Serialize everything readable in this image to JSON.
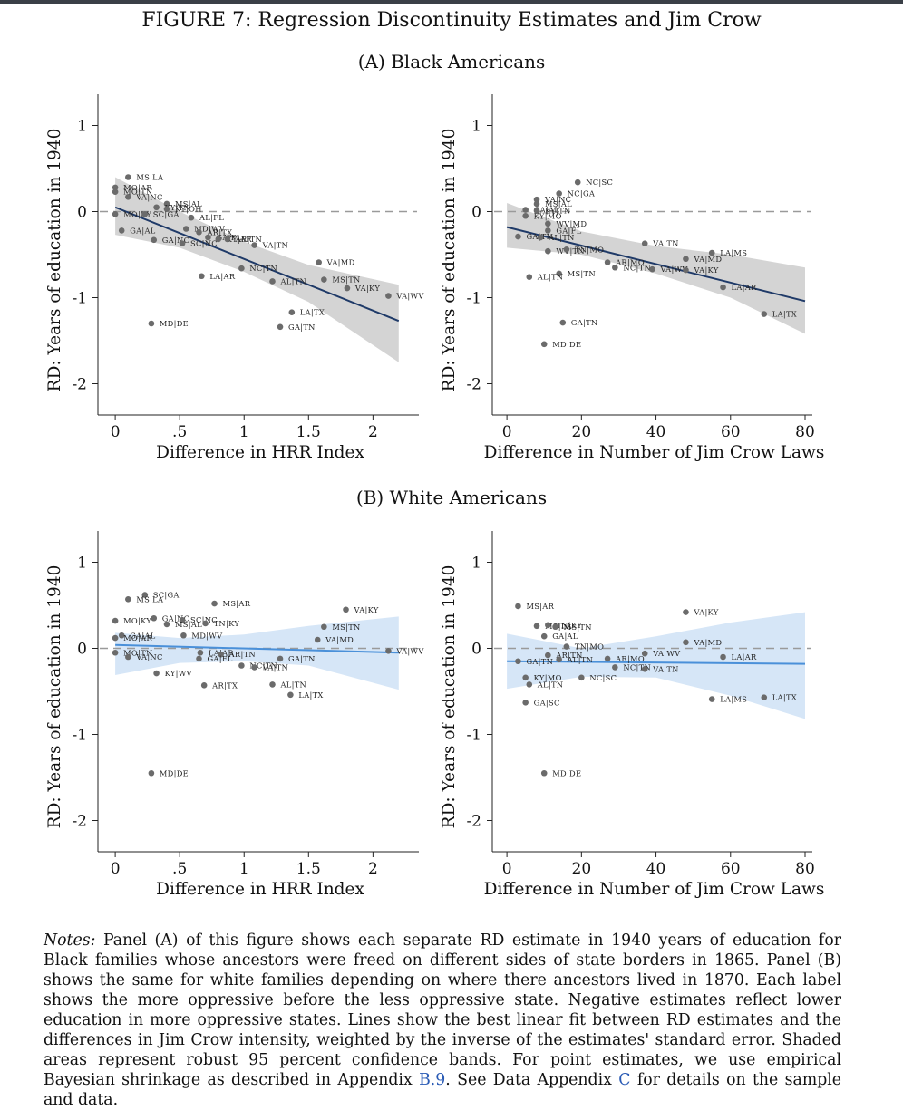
{
  "header": {
    "figure_title": "FIGURE 7: Regression Discontinuity Estimates and Jim Crow",
    "panel_a_title": "(A) Black Americans",
    "panel_b_title": "(B) White Americans"
  },
  "notes": {
    "label": "Notes:",
    "body": "Panel (A) of this figure shows each separate RD estimate in 1940 years of education for Black families whose ancestors were freed on different sides of state borders in 1865. Panel (B) shows the same for white families depending on where there ancestors lived in 1870. Each label shows the more oppressive before the less oppressive state. Negative estimates reflect lower education in more oppressive states. Lines show the best linear fit between RD estimates and the differences in Jim Crow intensity, weighted by the inverse of the estimates' standard error. Shaded areas represent robust 95 percent confidence bands. For point estimates, we use empirical Bayesian shrinkage as described in Appendix",
    "ref1": "B.9",
    "mid": ". See Data Appendix",
    "ref2": "C",
    "tail": "for details on the sample and data."
  },
  "colors": {
    "black_fit": "#1f3a68",
    "black_band": "#d4d4d4",
    "white_fit": "#4a90d9",
    "white_band": "#d6e6f7",
    "points": "#6b6b6b"
  },
  "chart_data": [
    {
      "id": "a_hrr",
      "type": "scatter",
      "ylabel": "RD: Years of education in 1940",
      "xlabel": "Difference in HRR Index",
      "xticks": [
        0,
        0.5,
        1,
        1.5,
        2
      ],
      "xticklabels": [
        "0",
        ".5",
        "1",
        "1.5",
        "2"
      ],
      "yticks": [
        -2,
        -1,
        0,
        1
      ],
      "yticklabels": [
        "-2",
        "-1",
        "0",
        "1"
      ],
      "xlim": [
        -0.05,
        2.3
      ],
      "ylim": [
        -2.3,
        1.3
      ],
      "fit": {
        "x": [
          0,
          2.2
        ],
        "y": [
          0.05,
          -1.27
        ]
      },
      "band": {
        "x": [
          0,
          0.5,
          1,
          1.5,
          2.2
        ],
        "upper": [
          0.4,
          0.0,
          -0.35,
          -0.62,
          -0.85
        ],
        "lower": [
          -0.27,
          -0.42,
          -0.7,
          -1.05,
          -1.75
        ]
      },
      "points": [
        {
          "x": 0.1,
          "y": 0.4,
          "label": "MS|LA"
        },
        {
          "x": 0.0,
          "y": 0.28,
          "label": "MO|AR"
        },
        {
          "x": 0.0,
          "y": 0.23,
          "label": "MO|TN"
        },
        {
          "x": 0.1,
          "y": 0.17,
          "label": "VA|NC"
        },
        {
          "x": 0.4,
          "y": 0.09,
          "label": "MS|AL"
        },
        {
          "x": 0.32,
          "y": 0.05,
          "label": "KY|TN"
        },
        {
          "x": 0.4,
          "y": 0.03,
          "label": "KY|OH"
        },
        {
          "x": 0.0,
          "y": -0.03,
          "label": "MO|KY"
        },
        {
          "x": 0.23,
          "y": -0.03,
          "label": "SC|GA"
        },
        {
          "x": 0.59,
          "y": -0.07,
          "label": "AL|FL"
        },
        {
          "x": 0.05,
          "y": -0.22,
          "label": "GA|AL"
        },
        {
          "x": 0.55,
          "y": -0.2,
          "label": "MD|WV"
        },
        {
          "x": 0.65,
          "y": -0.24,
          "label": "AR|TX"
        },
        {
          "x": 0.3,
          "y": -0.33,
          "label": "GA|NC"
        },
        {
          "x": 0.52,
          "y": -0.37,
          "label": "SC|NC"
        },
        {
          "x": 0.72,
          "y": -0.3,
          "label": "GA|FL"
        },
        {
          "x": 0.8,
          "y": -0.32,
          "label": "KY|AR"
        },
        {
          "x": 0.87,
          "y": -0.32,
          "label": "AR|TN"
        },
        {
          "x": 1.08,
          "y": -0.39,
          "label": "VA|TN"
        },
        {
          "x": 1.58,
          "y": -0.59,
          "label": "VA|MD"
        },
        {
          "x": 0.67,
          "y": -0.75,
          "label": "LA|AR"
        },
        {
          "x": 0.98,
          "y": -0.66,
          "label": "NC|TN"
        },
        {
          "x": 1.22,
          "y": -0.81,
          "label": "AL|TN"
        },
        {
          "x": 1.62,
          "y": -0.79,
          "label": "MS|TN"
        },
        {
          "x": 1.8,
          "y": -0.89,
          "label": "VA|KY"
        },
        {
          "x": 2.12,
          "y": -0.98,
          "label": "VA|WV"
        },
        {
          "x": 1.37,
          "y": -1.17,
          "label": "LA|TX"
        },
        {
          "x": 0.28,
          "y": -1.3,
          "label": "MD|DE"
        },
        {
          "x": 1.28,
          "y": -1.34,
          "label": "GA|TN"
        }
      ]
    },
    {
      "id": "a_laws",
      "type": "scatter",
      "ylabel": "RD: Years of education in 1940",
      "xlabel": "Difference in Number of Jim Crow Laws",
      "xticks": [
        0,
        20,
        40,
        60,
        80
      ],
      "xticklabels": [
        "0",
        "20",
        "40",
        "60",
        "80"
      ],
      "yticks": [
        -2,
        -1,
        0,
        1
      ],
      "yticklabels": [
        "-2",
        "-1",
        "0",
        "1"
      ],
      "xlim": [
        -1,
        80
      ],
      "ylim": [
        -2.3,
        1.3
      ],
      "fit": {
        "x": [
          0,
          80
        ],
        "y": [
          -0.18,
          -1.04
        ]
      },
      "band": {
        "x": [
          0,
          20,
          40,
          60,
          80
        ],
        "upper": [
          0.1,
          -0.23,
          -0.4,
          -0.5,
          -0.65
        ],
        "lower": [
          -0.42,
          -0.5,
          -0.72,
          -1.0,
          -1.42
        ]
      },
      "points": [
        {
          "x": 19,
          "y": 0.34,
          "label": "NC|SC"
        },
        {
          "x": 14,
          "y": 0.21,
          "label": "NC|GA"
        },
        {
          "x": 8,
          "y": 0.14,
          "label": "VA|NC"
        },
        {
          "x": 8,
          "y": 0.09,
          "label": "MS|AL"
        },
        {
          "x": 5,
          "y": 0.02,
          "label": "GA|AL"
        },
        {
          "x": 8,
          "y": 0.01,
          "label": "KY|TN"
        },
        {
          "x": 5,
          "y": -0.05,
          "label": "KY|MO"
        },
        {
          "x": 11,
          "y": -0.14,
          "label": "WV|MD"
        },
        {
          "x": 11,
          "y": -0.22,
          "label": "GA|FL"
        },
        {
          "x": 3,
          "y": -0.29,
          "label": "GA|TN"
        },
        {
          "x": 9,
          "y": -0.3,
          "label": "AL|TN"
        },
        {
          "x": 37,
          "y": -0.37,
          "label": "VA|TN"
        },
        {
          "x": 11,
          "y": -0.46,
          "label": "WV|TN"
        },
        {
          "x": 16,
          "y": -0.44,
          "label": "TN|MO"
        },
        {
          "x": 55,
          "y": -0.48,
          "label": "LA|MS"
        },
        {
          "x": 48,
          "y": -0.55,
          "label": "VA|MD"
        },
        {
          "x": 27,
          "y": -0.59,
          "label": "AR|MO"
        },
        {
          "x": 29,
          "y": -0.65,
          "label": "NC|TN"
        },
        {
          "x": 39,
          "y": -0.67,
          "label": "VA|WV"
        },
        {
          "x": 48,
          "y": -0.68,
          "label": "VA|KY"
        },
        {
          "x": 14,
          "y": -0.72,
          "label": "MS|TN"
        },
        {
          "x": 6,
          "y": -0.76,
          "label": "AL|TN"
        },
        {
          "x": 58,
          "y": -0.88,
          "label": "LA|AR"
        },
        {
          "x": 69,
          "y": -1.19,
          "label": "LA|TX"
        },
        {
          "x": 15,
          "y": -1.29,
          "label": "GA|TN"
        },
        {
          "x": 10,
          "y": -1.54,
          "label": "MD|DE"
        }
      ]
    },
    {
      "id": "b_hrr",
      "type": "scatter",
      "ylabel": "RD: Years of education in 1940",
      "xlabel": "Difference in HRR Index",
      "xticks": [
        0,
        0.5,
        1,
        1.5,
        2
      ],
      "xticklabels": [
        "0",
        ".5",
        "1",
        "1.5",
        "2"
      ],
      "yticks": [
        -2,
        -1,
        0,
        1
      ],
      "yticklabels": [
        "-2",
        "-1",
        "0",
        "1"
      ],
      "xlim": [
        -0.05,
        2.3
      ],
      "ylim": [
        -2.3,
        1.3
      ],
      "fit": {
        "x": [
          0,
          2.2
        ],
        "y": [
          0.04,
          -0.05
        ]
      },
      "band": {
        "x": [
          0,
          0.5,
          1,
          1.5,
          2.2
        ],
        "upper": [
          0.18,
          0.12,
          0.16,
          0.26,
          0.37
        ],
        "lower": [
          -0.31,
          -0.17,
          -0.15,
          -0.2,
          -0.48
        ]
      },
      "points": [
        {
          "x": 0.23,
          "y": 0.62,
          "label": "SC|GA"
        },
        {
          "x": 0.1,
          "y": 0.57,
          "label": "MS|LA"
        },
        {
          "x": 0.77,
          "y": 0.52,
          "label": "MS|AR"
        },
        {
          "x": 1.79,
          "y": 0.45,
          "label": "VA|KY"
        },
        {
          "x": 0.0,
          "y": 0.32,
          "label": "MO|KY"
        },
        {
          "x": 0.3,
          "y": 0.35,
          "label": "GA|NC"
        },
        {
          "x": 0.52,
          "y": 0.33,
          "label": "SC|NC"
        },
        {
          "x": 0.4,
          "y": 0.28,
          "label": "MS|AL"
        },
        {
          "x": 0.7,
          "y": 0.29,
          "label": "TN|KY"
        },
        {
          "x": 1.62,
          "y": 0.25,
          "label": "MS|TN"
        },
        {
          "x": 0.05,
          "y": 0.15,
          "label": "GA|AL"
        },
        {
          "x": 0.0,
          "y": 0.12,
          "label": "MO|AR"
        },
        {
          "x": 0.53,
          "y": 0.15,
          "label": "MD|WV"
        },
        {
          "x": 1.57,
          "y": 0.1,
          "label": "VA|MD"
        },
        {
          "x": 0.0,
          "y": -0.05,
          "label": "MO|TN"
        },
        {
          "x": 0.1,
          "y": -0.1,
          "label": "VA|NC"
        },
        {
          "x": 0.66,
          "y": -0.05,
          "label": "LA|AR"
        },
        {
          "x": 0.82,
          "y": -0.07,
          "label": "AR|TN"
        },
        {
          "x": 0.65,
          "y": -0.12,
          "label": "GA|FL"
        },
        {
          "x": 2.12,
          "y": -0.03,
          "label": "VA|WV"
        },
        {
          "x": 1.28,
          "y": -0.12,
          "label": "GA|TN"
        },
        {
          "x": 0.98,
          "y": -0.2,
          "label": "NC|TN"
        },
        {
          "x": 1.08,
          "y": -0.22,
          "label": "VA|TN"
        },
        {
          "x": 0.32,
          "y": -0.29,
          "label": "KY|WV"
        },
        {
          "x": 0.69,
          "y": -0.43,
          "label": "AR|TX"
        },
        {
          "x": 1.22,
          "y": -0.42,
          "label": "AL|TN"
        },
        {
          "x": 1.36,
          "y": -0.54,
          "label": "LA|TX"
        },
        {
          "x": 0.28,
          "y": -1.45,
          "label": "MD|DE"
        }
      ]
    },
    {
      "id": "b_laws",
      "type": "scatter",
      "ylabel": "RD: Years of education in 1940",
      "xlabel": "Difference in Number of Jim Crow Laws",
      "xticks": [
        0,
        20,
        40,
        60,
        80
      ],
      "xticklabels": [
        "0",
        "20",
        "40",
        "60",
        "80"
      ],
      "yticks": [
        -2,
        -1,
        0,
        1
      ],
      "yticklabels": [
        "-2",
        "-1",
        "0",
        "1"
      ],
      "xlim": [
        -1,
        80
      ],
      "ylim": [
        -2.3,
        1.3
      ],
      "fit": {
        "x": [
          0,
          80
        ],
        "y": [
          -0.15,
          -0.18
        ]
      },
      "band": {
        "x": [
          0,
          20,
          40,
          60,
          80
        ],
        "upper": [
          0.17,
          0.0,
          0.14,
          0.3,
          0.42
        ],
        "lower": [
          -0.47,
          -0.33,
          -0.34,
          -0.55,
          -0.82
        ]
      },
      "points": [
        {
          "x": 3,
          "y": 0.49,
          "label": "MS|AR"
        },
        {
          "x": 48,
          "y": 0.42,
          "label": "VA|KY"
        },
        {
          "x": 8,
          "y": 0.26,
          "label": "MS|LA"
        },
        {
          "x": 11,
          "y": 0.27,
          "label": "TN|KY"
        },
        {
          "x": 13,
          "y": 0.25,
          "label": "MS|TN"
        },
        {
          "x": 10,
          "y": 0.14,
          "label": "GA|AL"
        },
        {
          "x": 48,
          "y": 0.07,
          "label": "VA|MD"
        },
        {
          "x": 16,
          "y": 0.02,
          "label": "TN|MO"
        },
        {
          "x": 11,
          "y": -0.08,
          "label": "AR|TN"
        },
        {
          "x": 37,
          "y": -0.06,
          "label": "VA|WV"
        },
        {
          "x": 58,
          "y": -0.1,
          "label": "LA|AR"
        },
        {
          "x": 3,
          "y": -0.15,
          "label": "GA|TN"
        },
        {
          "x": 14,
          "y": -0.13,
          "label": "AL|TN"
        },
        {
          "x": 27,
          "y": -0.12,
          "label": "AR|MO"
        },
        {
          "x": 29,
          "y": -0.22,
          "label": "NC|TN"
        },
        {
          "x": 37,
          "y": -0.24,
          "label": "VA|TN"
        },
        {
          "x": 5,
          "y": -0.34,
          "label": "KY|MO"
        },
        {
          "x": 20,
          "y": -0.34,
          "label": "NC|SC"
        },
        {
          "x": 6,
          "y": -0.42,
          "label": "AL|TN"
        },
        {
          "x": 69,
          "y": -0.57,
          "label": "LA|TX"
        },
        {
          "x": 55,
          "y": -0.59,
          "label": "LA|MS"
        },
        {
          "x": 5,
          "y": -0.63,
          "label": "GA|SC"
        },
        {
          "x": 10,
          "y": -1.45,
          "label": "MD|DE"
        }
      ]
    }
  ]
}
